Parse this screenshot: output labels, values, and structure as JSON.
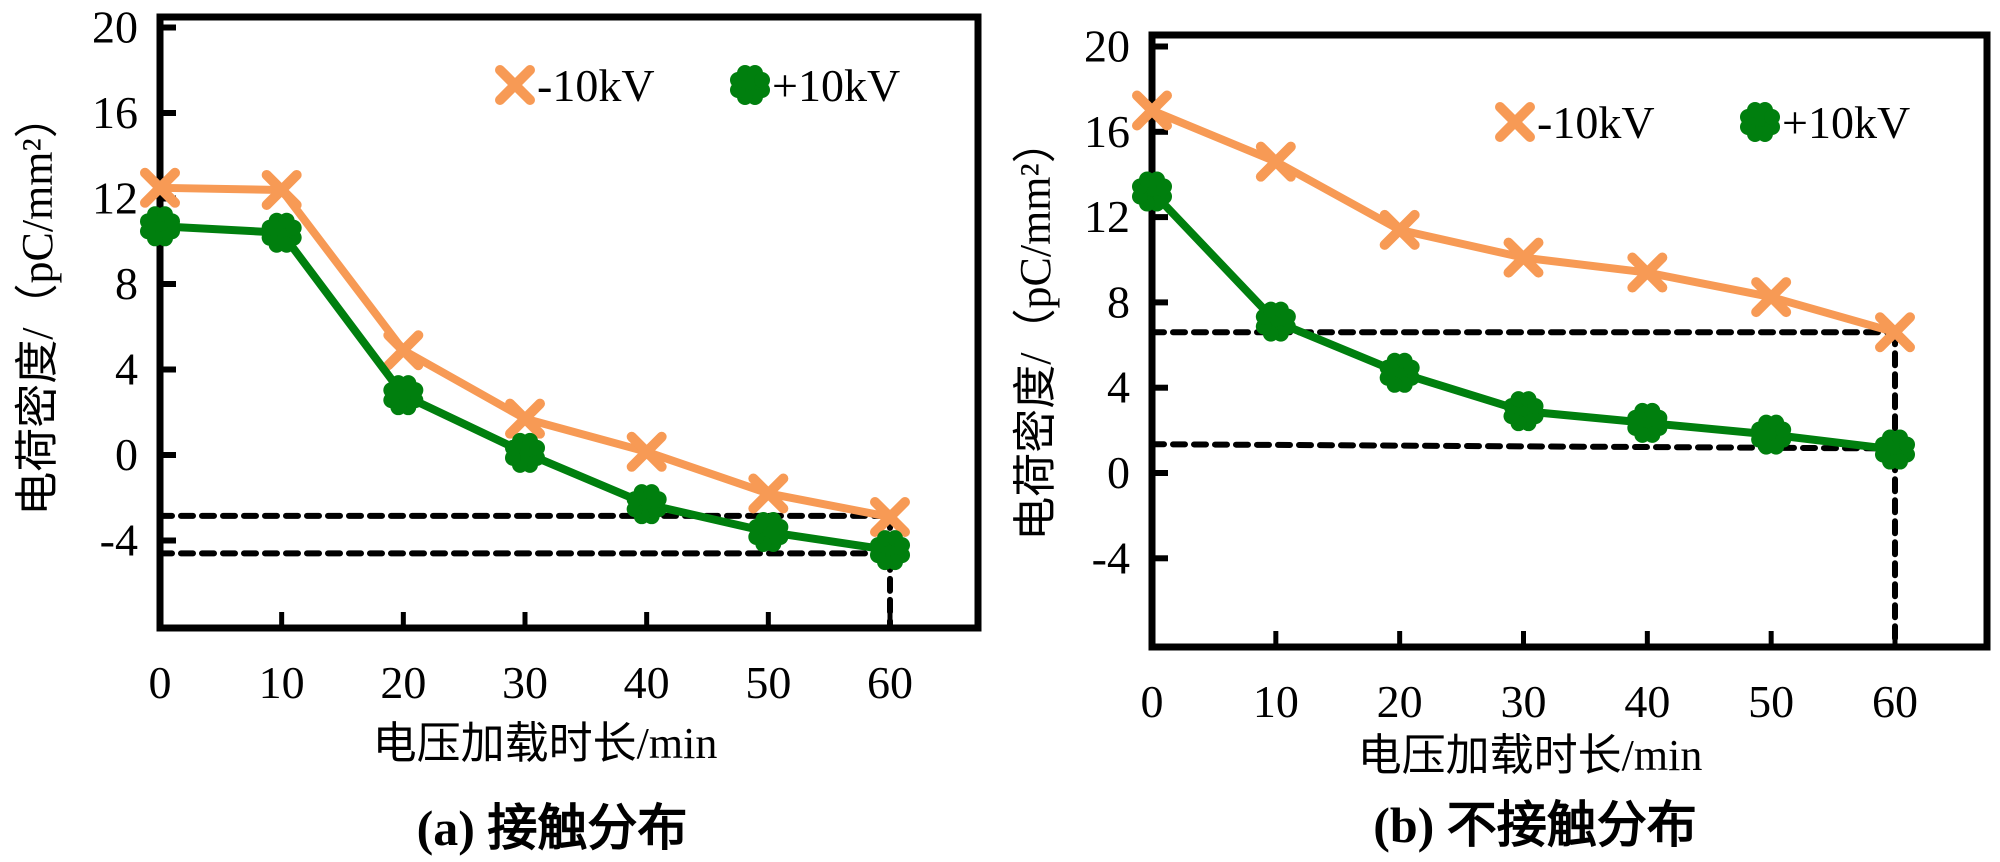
{
  "chart_data": [
    {
      "type": "line",
      "panel": "a",
      "caption": "(a) 接触分布",
      "xlabel": "电压加载时长/min",
      "ylabel": "电荷密度/（pC/mm²）",
      "x": [
        0,
        10,
        20,
        30,
        40,
        50,
        60
      ],
      "xticks": [
        "0",
        "10",
        "20",
        "30",
        "40",
        "50",
        "60"
      ],
      "yticks": [
        "-4",
        "0",
        "4",
        "8",
        "12",
        "16",
        "20"
      ],
      "ytick_values": [
        -4,
        0,
        4,
        8,
        12,
        16,
        20
      ],
      "ylim": [
        -8,
        20
      ],
      "xlim": [
        0,
        60
      ],
      "grid": false,
      "legend_position": "top-right",
      "series": [
        {
          "name": "-10kV",
          "marker": "x",
          "color": "#F79A55",
          "values": [
            12.5,
            12.4,
            4.9,
            1.7,
            0.15,
            -1.8,
            -2.9
          ]
        },
        {
          "name": "+10kV",
          "marker": "flower",
          "color": "#007F0E",
          "values": [
            10.7,
            10.4,
            2.8,
            0.1,
            -2.3,
            -3.6,
            -4.45
          ]
        }
      ],
      "reference_lines": [
        {
          "orientation": "horizontal",
          "y": -2.85,
          "x_from": 0,
          "x_to": 60
        },
        {
          "orientation": "horizontal",
          "y": -4.6,
          "x_from": 0,
          "x_to": 60
        },
        {
          "orientation": "vertical",
          "x": 60,
          "y_from": -2.85,
          "y_to": -8
        }
      ]
    },
    {
      "type": "line",
      "panel": "b",
      "caption": "(b) 不接触分布",
      "xlabel": "电压加载时长/min",
      "ylabel": "电荷密度/（pC/mm²）",
      "x": [
        0,
        10,
        20,
        30,
        40,
        50,
        60
      ],
      "xticks": [
        "0",
        "10",
        "20",
        "30",
        "40",
        "50",
        "60"
      ],
      "yticks": [
        "-4",
        "0",
        "4",
        "8",
        "12",
        "16",
        "20"
      ],
      "ytick_values": [
        -4,
        0,
        4,
        8,
        12,
        16,
        20
      ],
      "ylim": [
        -8,
        20
      ],
      "xlim": [
        0,
        60
      ],
      "grid": false,
      "legend_position": "top-right",
      "series": [
        {
          "name": "-10kV",
          "marker": "x",
          "color": "#F79A55",
          "values": [
            17.0,
            14.6,
            11.4,
            10.1,
            9.4,
            8.25,
            6.6
          ]
        },
        {
          "name": "+10kV",
          "marker": "flower",
          "color": "#007F0E",
          "values": [
            13.2,
            7.1,
            4.7,
            2.9,
            2.35,
            1.8,
            1.1
          ]
        }
      ],
      "reference_lines": [
        {
          "orientation": "horizontal",
          "y": 6.6,
          "x_from": 0,
          "x_to": 60
        },
        {
          "orientation": "horizontal",
          "y": 1.35,
          "y_end": 1.15,
          "x_from": 0,
          "x_to": 60
        },
        {
          "orientation": "vertical",
          "x": 60,
          "y_from": 6.6,
          "y_to": -8
        }
      ]
    }
  ]
}
